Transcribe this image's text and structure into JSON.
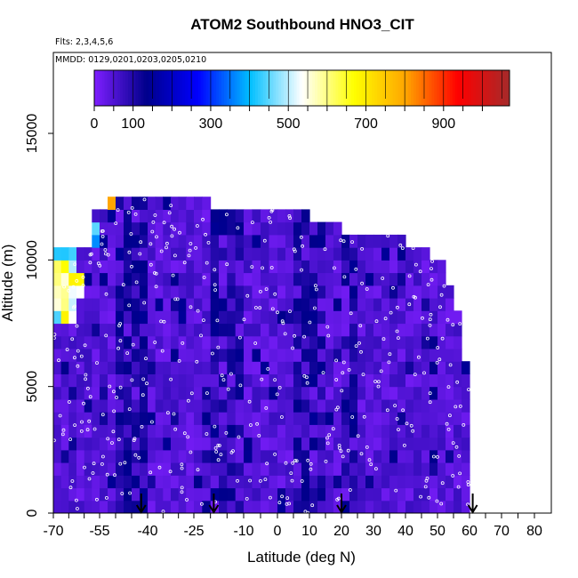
{
  "chart_data": {
    "type": "heatmap",
    "title": "ATOM2 Southbound HNO3_CIT",
    "flights_note": "Flts: 2,3,4,5,6",
    "dates_note": "MMDD: 0129,0201,0203,0205,0210",
    "xlabel": "Latitude (deg N)",
    "ylabel": "Altitude (m)",
    "xlim": [
      -70,
      80
    ],
    "ylim": [
      0,
      17500
    ],
    "x_tick_labels": [
      "-70",
      "-55",
      "-40",
      "-25",
      "-10",
      "0",
      "10",
      "20",
      "30",
      "40",
      "50",
      "60",
      "70",
      "80"
    ],
    "x_tick_values": [
      -70,
      -55,
      -40,
      -25,
      -10,
      0,
      10,
      20,
      30,
      40,
      50,
      60,
      70,
      80
    ],
    "y_tick_labels": [
      "0",
      "5000",
      "10000",
      "15000"
    ],
    "y_tick_values": [
      0,
      5000,
      10000,
      15000
    ],
    "colorbar": {
      "range": [
        0,
        1070
      ],
      "tick_labels": [
        "0",
        "100",
        "300",
        "500",
        "700",
        "900"
      ],
      "tick_values": [
        0,
        100,
        300,
        500,
        700,
        900
      ],
      "colors": [
        "#7f1fff",
        "#00008b",
        "#0000ff",
        "#00bfff",
        "#ffffff",
        "#ffff00",
        "#ffa500",
        "#ff0000",
        "#a52a2a"
      ]
    },
    "arrows_latitude": [
      -42,
      -19,
      20,
      61
    ],
    "grid": {
      "lat_step": 2.5,
      "alt_step": 500,
      "lat_start": -70,
      "alt_extent": [
        {
          "lat": -70,
          "max_alt": 10500
        },
        {
          "lat": -62.5,
          "max_alt": 10500
        },
        {
          "lat": -57.5,
          "max_alt": 11800
        },
        {
          "lat": -52.5,
          "max_alt": 12500
        },
        {
          "lat": -45,
          "max_alt": 12500
        },
        {
          "lat": -32.5,
          "max_alt": 12300
        },
        {
          "lat": -20,
          "max_alt": 12000
        },
        {
          "lat": 0,
          "max_alt": 12000
        },
        {
          "lat": 10,
          "max_alt": 11200
        },
        {
          "lat": 20,
          "max_alt": 11000
        },
        {
          "lat": 40,
          "max_alt": 10500
        },
        {
          "lat": 47.5,
          "max_alt": 10000
        },
        {
          "lat": 52.5,
          "max_alt": 9000
        },
        {
          "lat": 55,
          "max_alt": 8000
        },
        {
          "lat": 57.5,
          "max_alt": 6000
        },
        {
          "lat": 60,
          "max_alt": 2500
        }
      ],
      "hotspots": [
        {
          "lat_min": -70,
          "lat_max": -62.5,
          "alt_min": 7200,
          "alt_max": 10300,
          "value": 650
        },
        {
          "lat_min": -70,
          "lat_max": -60,
          "alt_min": 8200,
          "alt_max": 9200,
          "value": 800
        },
        {
          "lat_min": -55,
          "lat_max": -52,
          "alt_min": 11800,
          "alt_max": 12300,
          "value": 750
        },
        {
          "lat_min": -62.5,
          "lat_max": -55,
          "alt_min": 10500,
          "alt_max": 11300,
          "value": 450
        }
      ]
    }
  }
}
